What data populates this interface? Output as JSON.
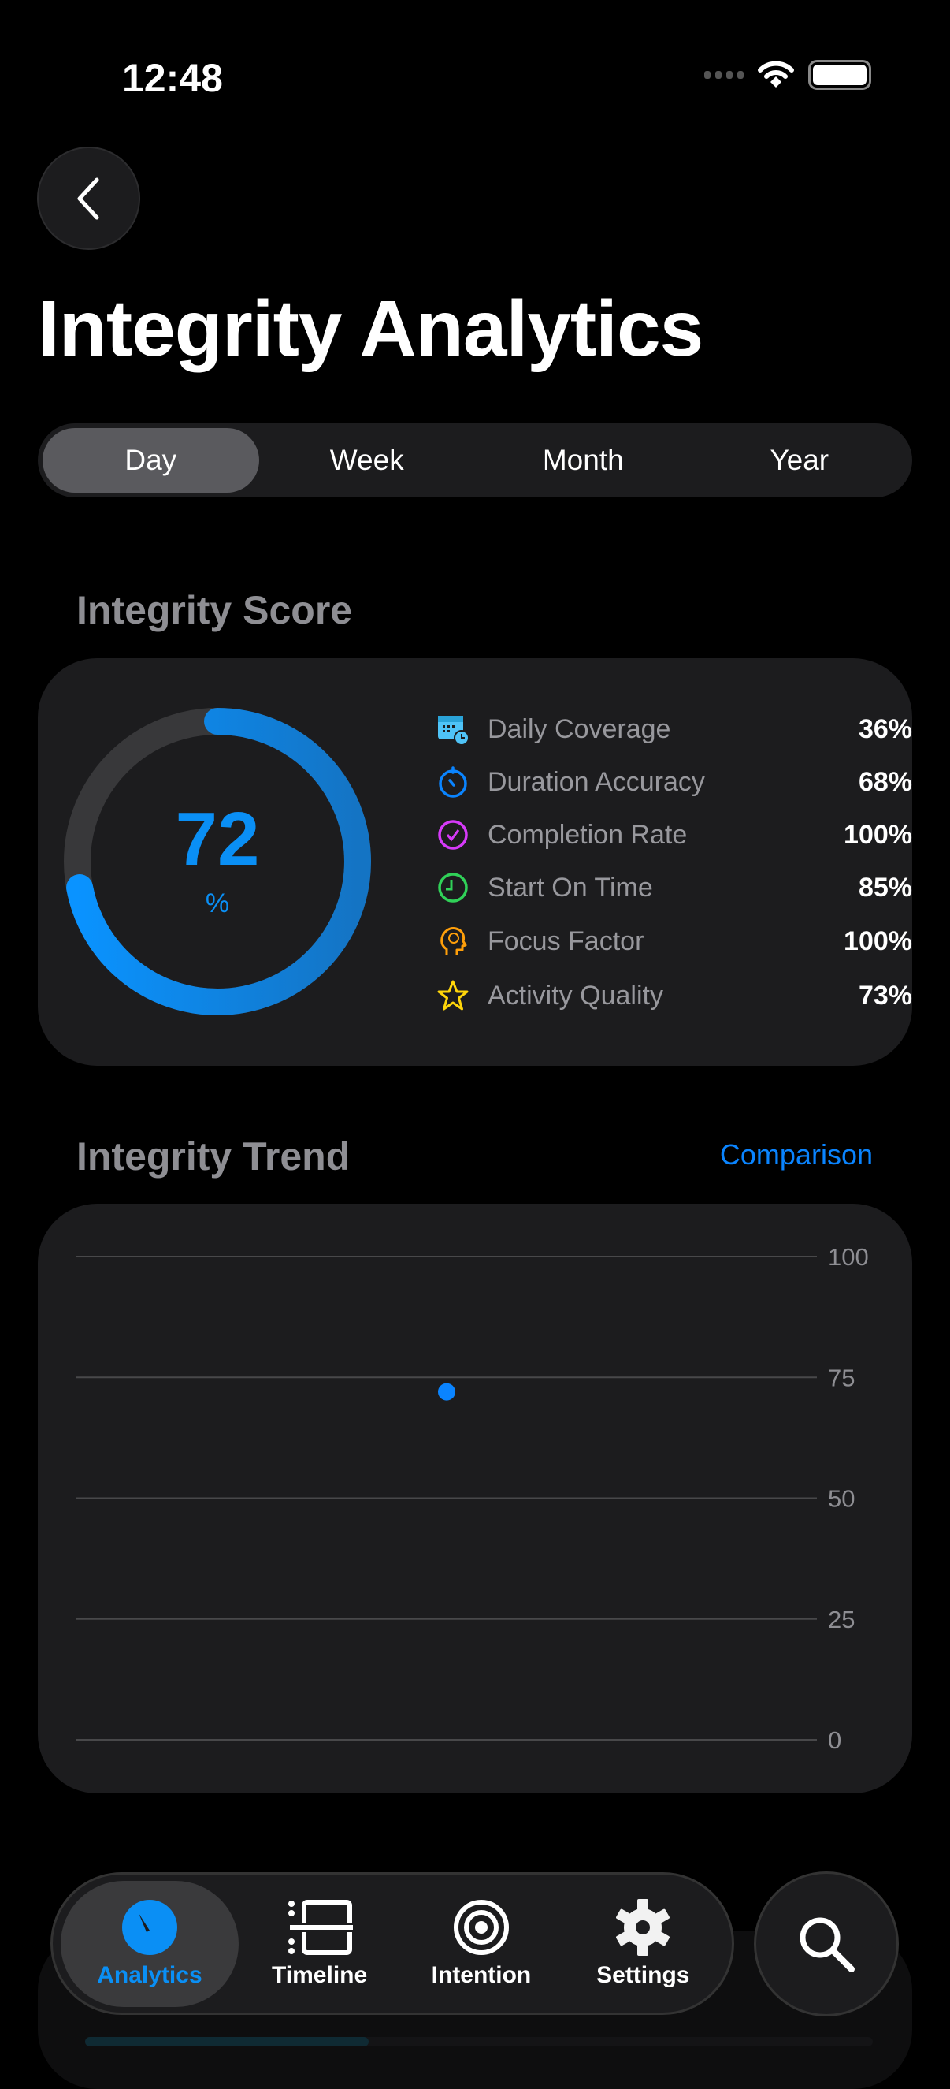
{
  "status_bar": {
    "time": "12:48"
  },
  "header": {
    "title": "Integrity Analytics"
  },
  "segments": [
    {
      "label": "Day",
      "active": true
    },
    {
      "label": "Week"
    },
    {
      "label": "Month"
    },
    {
      "label": "Year"
    }
  ],
  "score": {
    "section_title": "Integrity Score",
    "value": "72",
    "unit": "%",
    "fraction": 0.72,
    "accent": "#0A8FF5",
    "metrics": [
      {
        "icon": "calendar-clock-icon",
        "label": "Daily Coverage",
        "value": "36%",
        "color": "#4fc3f7"
      },
      {
        "icon": "timer-icon",
        "label": "Duration Accuracy",
        "value": "68%",
        "color": "#0a84ff"
      },
      {
        "icon": "checkmark-circle-icon",
        "label": "Completion Rate",
        "value": "100%",
        "color": "#d63af9"
      },
      {
        "icon": "clock-icon",
        "label": "Start On Time",
        "value": "85%",
        "color": "#30d158"
      },
      {
        "icon": "brain-head-icon",
        "label": "Focus Factor",
        "value": "100%",
        "color": "#ff9f0a"
      },
      {
        "icon": "star-icon",
        "label": "Activity Quality",
        "value": "73%",
        "color": "#ffd60a"
      }
    ]
  },
  "trend": {
    "section_title": "Integrity Trend",
    "comparison_link": "Comparison"
  },
  "chart_data": {
    "type": "scatter",
    "ylim": [
      0,
      100
    ],
    "yticks": [
      "100",
      "75",
      "50",
      "25",
      "0"
    ],
    "y_tick_values": [
      100,
      75,
      50,
      25,
      0
    ],
    "grid": true,
    "points": [
      {
        "y": 72
      }
    ],
    "color": "#0A84FF"
  },
  "tabbar": {
    "items": [
      {
        "label": "Analytics",
        "icon": "gauge-icon",
        "active": true
      },
      {
        "label": "Timeline",
        "icon": "timeline-icon"
      },
      {
        "label": "Intention",
        "icon": "target-icon"
      },
      {
        "label": "Settings",
        "icon": "gear-icon"
      }
    ]
  }
}
